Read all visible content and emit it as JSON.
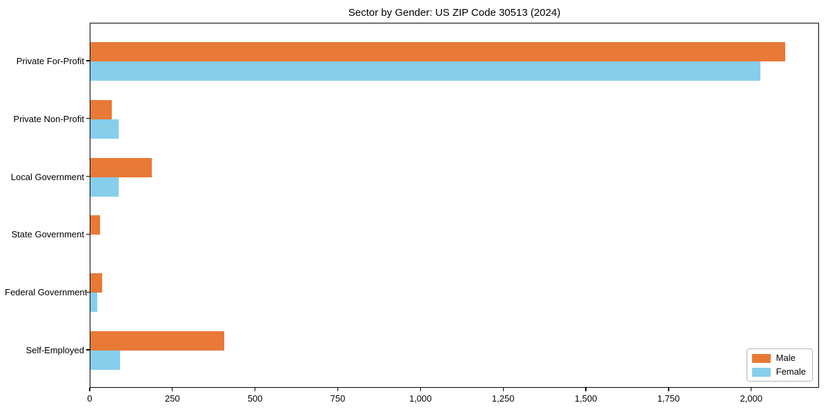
{
  "chart_data": {
    "type": "bar",
    "orientation": "horizontal",
    "title": "Sector by Gender: US ZIP Code 30513 (2024)",
    "categories": [
      "Private For-Profit",
      "Private Non-Profit",
      "Local Government",
      "State Government",
      "Federal Government",
      "Self-Employed"
    ],
    "series": [
      {
        "name": "Male",
        "color": "#E87937",
        "values": [
          2100,
          65,
          185,
          30,
          35,
          405
        ]
      },
      {
        "name": "Female",
        "color": "#87CEEB",
        "values": [
          2025,
          85,
          85,
          0,
          20,
          90
        ]
      }
    ],
    "xlabel": "",
    "ylabel": "",
    "xlim": [
      0,
      2205
    ],
    "x_ticks": [
      0,
      250,
      500,
      750,
      1000,
      1250,
      1500,
      1750,
      2000
    ],
    "x_tick_labels": [
      "0",
      "250",
      "500",
      "750",
      "1,000",
      "1,250",
      "1,500",
      "1,750",
      "2,000"
    ],
    "grid": false,
    "legend_position": "lower right",
    "frame": true
  }
}
